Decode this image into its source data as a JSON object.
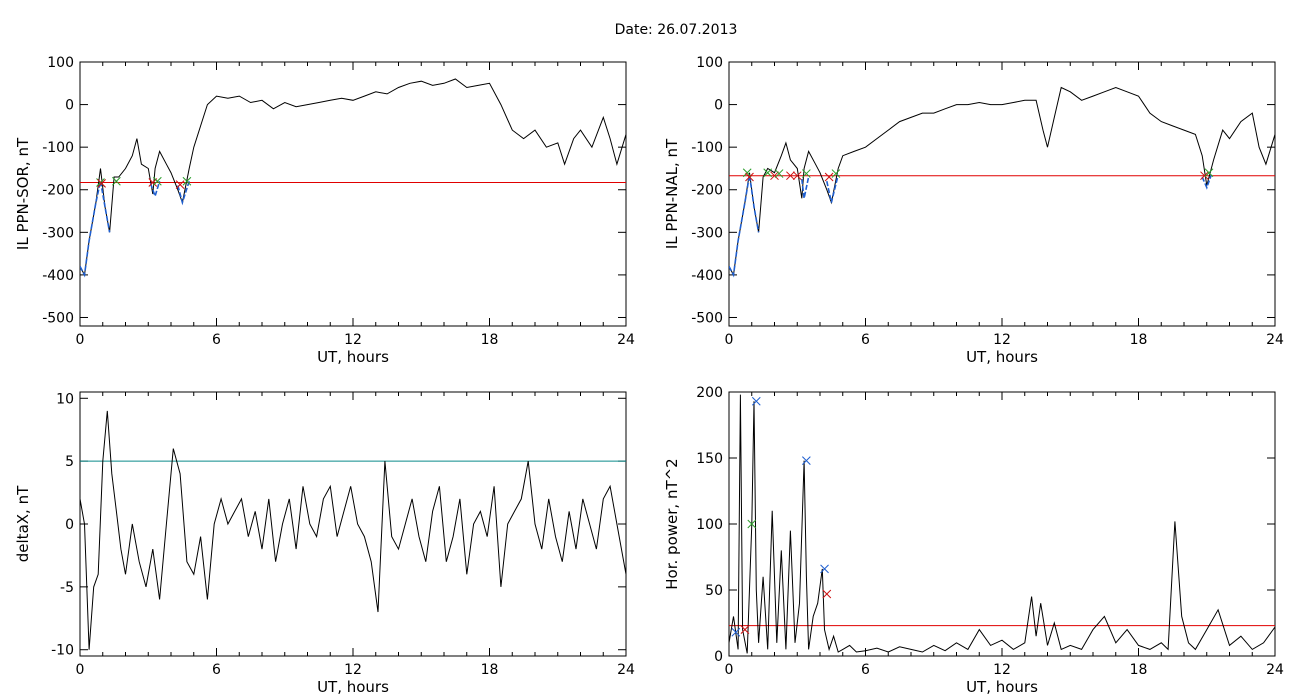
{
  "figure": {
    "title": "Date:  26.07.2013"
  },
  "colors": {
    "trace": "#000000",
    "threshold_red": "#e00000",
    "threshold_teal": "#0a8a8a",
    "dip_blue": "#1f5fd0",
    "cross_green": "#2a9d2a",
    "cross_red": "#cc1111",
    "cross_blue": "#1f5fd0"
  },
  "chart_data": [
    {
      "type": "line",
      "ylabel": "IL PPN-SOR, nT",
      "xlabel": "UT, hours",
      "xlim": [
        0,
        24
      ],
      "ylim": [
        -520,
        100
      ],
      "xticks": [
        "0",
        "6",
        "12",
        "18",
        "24"
      ],
      "yticks": [
        "100",
        "0",
        "-100",
        "-200",
        "-300",
        "-400",
        "-500"
      ],
      "threshold": -183,
      "x": [
        0,
        0.2,
        0.4,
        0.7,
        0.9,
        1.1,
        1.3,
        1.5,
        1.7,
        2.0,
        2.3,
        2.5,
        2.7,
        3.0,
        3.2,
        3.3,
        3.5,
        3.8,
        4.0,
        4.3,
        4.5,
        4.8,
        5.0,
        5.3,
        5.6,
        6.0,
        6.5,
        7.0,
        7.5,
        8.0,
        8.5,
        9.0,
        9.5,
        10.0,
        10.5,
        11.0,
        11.5,
        12.0,
        12.5,
        13.0,
        13.5,
        14.0,
        14.5,
        15.0,
        15.5,
        16.0,
        16.5,
        17.0,
        17.5,
        18.0,
        18.5,
        19.0,
        19.5,
        20.0,
        20.5,
        21.0,
        21.3,
        21.7,
        22.0,
        22.5,
        23.0,
        23.3,
        23.6,
        24.0
      ],
      "y": [
        -380,
        -400,
        -320,
        -230,
        -150,
        -240,
        -300,
        -170,
        -170,
        -150,
        -120,
        -80,
        -140,
        -150,
        -210,
        -150,
        -110,
        -140,
        -160,
        -200,
        -230,
        -150,
        -100,
        -50,
        0,
        20,
        15,
        20,
        5,
        10,
        -10,
        5,
        -5,
        0,
        5,
        10,
        15,
        10,
        20,
        30,
        25,
        40,
        50,
        55,
        45,
        50,
        60,
        40,
        45,
        50,
        0,
        -60,
        -80,
        -60,
        -100,
        -90,
        -140,
        -80,
        -60,
        -100,
        -30,
        -80,
        -140,
        -70
      ],
      "dips": [
        {
          "x": [
            0,
            0.2,
            0.4,
            0.7,
            0.9,
            1.1,
            1.3
          ],
          "y": [
            -380,
            -400,
            -320,
            -230,
            -180,
            -240,
            -300
          ]
        },
        {
          "x": [
            3.1,
            3.3,
            3.5
          ],
          "y": [
            -185,
            -215,
            -180
          ]
        },
        {
          "x": [
            4.3,
            4.5,
            4.8
          ],
          "y": [
            -190,
            -230,
            -180
          ]
        }
      ],
      "markers": [
        {
          "x": 0.9,
          "y": -183,
          "color": "green"
        },
        {
          "x": 0.95,
          "y": -185,
          "color": "red"
        },
        {
          "x": 1.6,
          "y": -180,
          "color": "green"
        },
        {
          "x": 3.2,
          "y": -183,
          "color": "red"
        },
        {
          "x": 3.4,
          "y": -180,
          "color": "green"
        },
        {
          "x": 4.4,
          "y": -188,
          "color": "red"
        },
        {
          "x": 4.7,
          "y": -180,
          "color": "green"
        }
      ]
    },
    {
      "type": "line",
      "ylabel": "IL PPN-NAL, nT",
      "xlabel": "UT, hours",
      "xlim": [
        0,
        24
      ],
      "ylim": [
        -520,
        100
      ],
      "xticks": [
        "0",
        "6",
        "12",
        "18",
        "24"
      ],
      "yticks": [
        "100",
        "0",
        "-100",
        "-200",
        "-300",
        "-400",
        "-500"
      ],
      "threshold": -167,
      "x": [
        0,
        0.2,
        0.4,
        0.7,
        0.9,
        1.1,
        1.3,
        1.5,
        1.7,
        2.0,
        2.3,
        2.5,
        2.7,
        3.0,
        3.2,
        3.3,
        3.5,
        3.8,
        4.0,
        4.3,
        4.5,
        4.8,
        5.0,
        5.5,
        6.0,
        6.5,
        7.0,
        7.5,
        8.0,
        8.5,
        9.0,
        9.5,
        10.0,
        10.5,
        11.0,
        11.5,
        12.0,
        12.5,
        13.0,
        13.5,
        13.8,
        14.0,
        14.3,
        14.6,
        15.0,
        15.5,
        16.0,
        16.5,
        17.0,
        17.5,
        18.0,
        18.5,
        19.0,
        19.5,
        20.0,
        20.5,
        20.8,
        21.0,
        21.3,
        21.7,
        22.0,
        22.5,
        23.0,
        23.3,
        23.6,
        24.0
      ],
      "y": [
        -380,
        -400,
        -320,
        -230,
        -160,
        -240,
        -300,
        -170,
        -150,
        -160,
        -120,
        -90,
        -130,
        -150,
        -220,
        -150,
        -110,
        -140,
        -160,
        -200,
        -230,
        -150,
        -120,
        -110,
        -100,
        -80,
        -60,
        -40,
        -30,
        -20,
        -20,
        -10,
        0,
        0,
        5,
        0,
        0,
        5,
        10,
        10,
        -60,
        -100,
        -30,
        40,
        30,
        10,
        20,
        30,
        40,
        30,
        20,
        -20,
        -40,
        -50,
        -60,
        -70,
        -120,
        -190,
        -130,
        -60,
        -80,
        -40,
        -20,
        -100,
        -140,
        -70
      ],
      "dips": [
        {
          "x": [
            0,
            0.2,
            0.4,
            0.7,
            0.9,
            1.1,
            1.3
          ],
          "y": [
            -380,
            -400,
            -320,
            -230,
            -165,
            -240,
            -300
          ]
        },
        {
          "x": [
            3.2,
            3.3,
            3.5
          ],
          "y": [
            -175,
            -220,
            -170
          ]
        },
        {
          "x": [
            4.3,
            4.5,
            4.8
          ],
          "y": [
            -180,
            -230,
            -165
          ]
        },
        {
          "x": [
            20.8,
            21.0,
            21.2
          ],
          "y": [
            -170,
            -195,
            -165
          ]
        }
      ],
      "markers": [
        {
          "x": 0.8,
          "y": -160,
          "color": "green"
        },
        {
          "x": 0.9,
          "y": -170,
          "color": "red"
        },
        {
          "x": 1.7,
          "y": -160,
          "color": "green"
        },
        {
          "x": 2.0,
          "y": -167,
          "color": "red"
        },
        {
          "x": 2.2,
          "y": -162,
          "color": "green"
        },
        {
          "x": 2.7,
          "y": -167,
          "color": "red"
        },
        {
          "x": 3.0,
          "y": -167,
          "color": "red"
        },
        {
          "x": 3.4,
          "y": -162,
          "color": "green"
        },
        {
          "x": 4.4,
          "y": -170,
          "color": "red"
        },
        {
          "x": 4.7,
          "y": -162,
          "color": "green"
        },
        {
          "x": 20.9,
          "y": -167,
          "color": "red"
        },
        {
          "x": 21.1,
          "y": -160,
          "color": "green"
        }
      ]
    },
    {
      "type": "line",
      "ylabel": "deltaX, nT",
      "xlabel": "UT, hours",
      "xlim": [
        0,
        24
      ],
      "ylim": [
        -10.5,
        10.5
      ],
      "xticks": [
        "0",
        "6",
        "12",
        "18",
        "24"
      ],
      "yticks": [
        "10",
        "5",
        "0",
        "-5",
        "-10"
      ],
      "threshold": 5,
      "x": [
        0,
        0.2,
        0.4,
        0.6,
        0.8,
        1.0,
        1.2,
        1.4,
        1.6,
        1.8,
        2.0,
        2.3,
        2.6,
        2.9,
        3.2,
        3.5,
        3.8,
        4.1,
        4.4,
        4.7,
        5.0,
        5.3,
        5.6,
        5.9,
        6.2,
        6.5,
        6.8,
        7.1,
        7.4,
        7.7,
        8.0,
        8.3,
        8.6,
        8.9,
        9.2,
        9.5,
        9.8,
        10.1,
        10.4,
        10.7,
        11.0,
        11.3,
        11.6,
        11.9,
        12.2,
        12.5,
        12.8,
        13.1,
        13.4,
        13.7,
        14.0,
        14.3,
        14.6,
        14.9,
        15.2,
        15.5,
        15.8,
        16.1,
        16.4,
        16.7,
        17.0,
        17.3,
        17.6,
        17.9,
        18.2,
        18.5,
        18.8,
        19.1,
        19.4,
        19.7,
        20.0,
        20.3,
        20.6,
        20.9,
        21.2,
        21.5,
        21.8,
        22.1,
        22.4,
        22.7,
        23.0,
        23.3,
        23.6,
        24.0
      ],
      "y": [
        2,
        0,
        -10,
        -5,
        -4,
        5,
        9,
        4,
        1,
        -2,
        -4,
        0,
        -3,
        -5,
        -2,
        -6,
        0,
        6,
        4,
        -3,
        -4,
        -1,
        -6,
        0,
        2,
        0,
        1,
        2,
        -1,
        1,
        -2,
        2,
        -3,
        0,
        2,
        -2,
        3,
        0,
        -1,
        2,
        3,
        -1,
        1,
        3,
        0,
        -1,
        -3,
        -7,
        5,
        -1,
        -2,
        0,
        2,
        -1,
        -3,
        1,
        3,
        -3,
        -1,
        2,
        -4,
        0,
        1,
        -1,
        3,
        -5,
        0,
        1,
        2,
        5,
        0,
        -2,
        2,
        -1,
        -3,
        1,
        -2,
        2,
        0,
        -2,
        2,
        3,
        0,
        -4
      ]
    },
    {
      "type": "line",
      "ylabel": "Hor. power, nT^2",
      "xlabel": "UT, hours",
      "xlim": [
        0,
        24
      ],
      "ylim": [
        0,
        200
      ],
      "xticks": [
        "0",
        "6",
        "12",
        "18",
        "24"
      ],
      "yticks": [
        "200",
        "150",
        "100",
        "50",
        "0"
      ],
      "threshold": 23,
      "x": [
        0,
        0.2,
        0.4,
        0.5,
        0.6,
        0.8,
        1.0,
        1.1,
        1.2,
        1.3,
        1.5,
        1.7,
        1.9,
        2.1,
        2.3,
        2.5,
        2.7,
        2.9,
        3.1,
        3.3,
        3.4,
        3.5,
        3.7,
        3.9,
        4.1,
        4.2,
        4.4,
        4.6,
        4.8,
        5.0,
        5.3,
        5.6,
        6.0,
        6.5,
        7.0,
        7.5,
        8.0,
        8.5,
        9.0,
        9.5,
        10.0,
        10.5,
        11.0,
        11.5,
        12.0,
        12.5,
        13.0,
        13.3,
        13.5,
        13.7,
        14.0,
        14.3,
        14.6,
        15.0,
        15.5,
        16.0,
        16.5,
        17.0,
        17.5,
        18.0,
        18.5,
        19.0,
        19.3,
        19.6,
        19.9,
        20.2,
        20.5,
        21.0,
        21.5,
        22.0,
        22.5,
        23.0,
        23.5,
        24.0
      ],
      "y": [
        10,
        30,
        5,
        198,
        20,
        2,
        100,
        193,
        50,
        10,
        60,
        5,
        110,
        10,
        80,
        5,
        95,
        10,
        40,
        148,
        60,
        5,
        30,
        40,
        66,
        20,
        5,
        15,
        3,
        5,
        8,
        3,
        4,
        6,
        3,
        7,
        5,
        3,
        8,
        4,
        10,
        5,
        20,
        8,
        12,
        5,
        10,
        45,
        15,
        40,
        8,
        25,
        5,
        8,
        5,
        20,
        30,
        10,
        20,
        8,
        5,
        10,
        5,
        102,
        30,
        10,
        5,
        20,
        35,
        8,
        15,
        5,
        10,
        22
      ],
      "markers": [
        {
          "x": 0.3,
          "y": 18,
          "color": "blue"
        },
        {
          "x": 0.7,
          "y": 20,
          "color": "red"
        },
        {
          "x": 1.0,
          "y": 100,
          "color": "green"
        },
        {
          "x": 1.2,
          "y": 193,
          "color": "blue"
        },
        {
          "x": 3.4,
          "y": 148,
          "color": "blue"
        },
        {
          "x": 4.2,
          "y": 66,
          "color": "blue"
        },
        {
          "x": 4.3,
          "y": 47,
          "color": "red"
        }
      ]
    }
  ]
}
